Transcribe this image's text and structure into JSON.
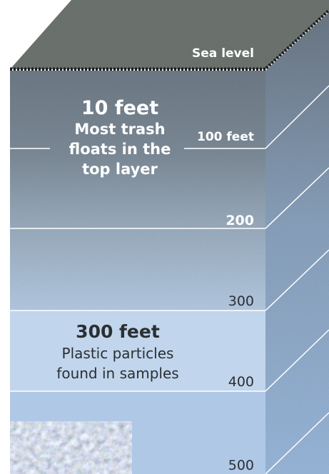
{
  "labels": {
    "sea_level": "Sea level",
    "depths": [
      "100 feet",
      "200",
      "300",
      "400",
      "500"
    ]
  },
  "callouts": [
    {
      "heading": "10 feet",
      "lines": [
        "Most trash",
        "floats in the",
        "top layer"
      ]
    },
    {
      "heading": "300 feet",
      "lines": [
        "Plastic particles",
        "found in samples"
      ]
    }
  ]
}
